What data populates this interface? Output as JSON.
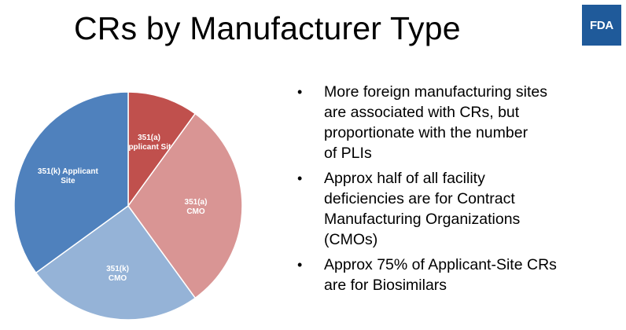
{
  "title": "CRs by Manufacturer Type",
  "logo": {
    "text": "FDA",
    "color": "#1f5a9a"
  },
  "chart_data": {
    "type": "pie",
    "title": "",
    "start_angle_deg": 0,
    "direction": "clockwise",
    "slices": [
      {
        "label": [
          "351(a)",
          "Applicant Site"
        ],
        "value": 10,
        "color": "#c0504d"
      },
      {
        "label": [
          "351(a)",
          "CMO"
        ],
        "value": 30,
        "color": "#d99594"
      },
      {
        "label": [
          "351(k)",
          "CMO"
        ],
        "value": 25,
        "color": "#95b3d7"
      },
      {
        "label": [
          "351(k) Applicant",
          "Site"
        ],
        "value": 35,
        "color": "#4f81bd"
      }
    ]
  },
  "bullets": [
    {
      "lines": [
        "More foreign manufacturing sites",
        "are associated with CRs, but",
        "proportionate with the number",
        "of PLIs"
      ]
    },
    {
      "lines": [
        "Approx half of all facility",
        "deficiencies are for Contract",
        "Manufacturing Organizations",
        "(CMOs)"
      ]
    },
    {
      "lines": [
        "Approx 75% of Applicant-Site CRs",
        "are for Biosimilars"
      ]
    }
  ]
}
